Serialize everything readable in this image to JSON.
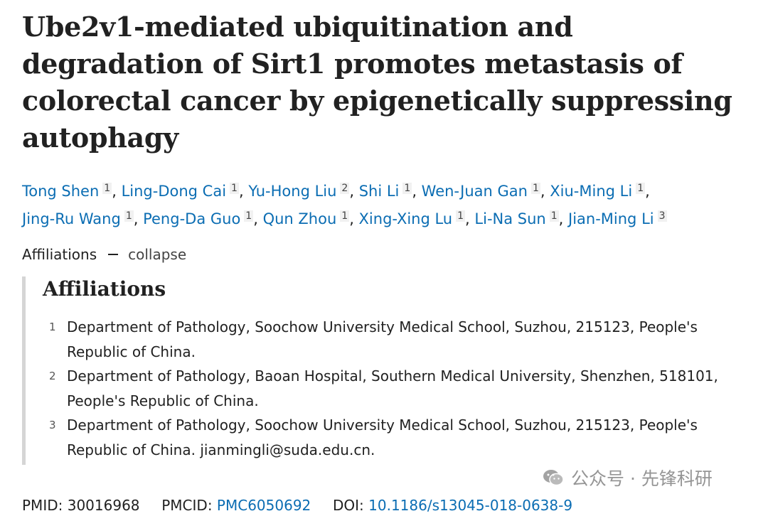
{
  "article": {
    "title": "Ube2v1-mediated ubiquitination and degradation of Sirt1 promotes metastasis of colorectal cancer by epigenetically suppressing autophagy"
  },
  "authors": [
    {
      "name": "Tong Shen",
      "aff": "1"
    },
    {
      "name": "Ling-Dong Cai",
      "aff": "1"
    },
    {
      "name": "Yu-Hong Liu",
      "aff": "2"
    },
    {
      "name": "Shi Li",
      "aff": "1"
    },
    {
      "name": "Wen-Juan Gan",
      "aff": "1"
    },
    {
      "name": "Xiu-Ming Li",
      "aff": "1"
    },
    {
      "name": "Jing-Ru Wang",
      "aff": "1"
    },
    {
      "name": "Peng-Da Guo",
      "aff": "1"
    },
    {
      "name": "Qun Zhou",
      "aff": "1"
    },
    {
      "name": "Xing-Xing Lu",
      "aff": "1"
    },
    {
      "name": "Li-Na Sun",
      "aff": "1"
    },
    {
      "name": "Jian-Ming Li",
      "aff": "3"
    }
  ],
  "affiliations_toggle": {
    "label": "Affiliations",
    "action": "collapse"
  },
  "affiliations": {
    "heading": "Affiliations",
    "items": [
      {
        "num": "1",
        "text": "Department of Pathology, Soochow University Medical School, Suzhou, 215123, People's Republic of China."
      },
      {
        "num": "2",
        "text": "Department of Pathology, Baoan Hospital, Southern Medical University, Shenzhen, 518101, People's Republic of China."
      },
      {
        "num": "3",
        "text": "Department of Pathology, Soochow University Medical School, Suzhou, 215123, People's Republic of China. jianmingli@suda.edu.cn."
      }
    ]
  },
  "identifiers": {
    "pmid_label": "PMID:",
    "pmid": "30016968",
    "pmcid_label": "PMCID:",
    "pmcid": "PMC6050692",
    "doi_label": "DOI:",
    "doi": "10.1186/s13045-018-0638-9"
  },
  "watermark": {
    "text": "公众号 · 先锋科研",
    "icon": "wechat-icon"
  }
}
